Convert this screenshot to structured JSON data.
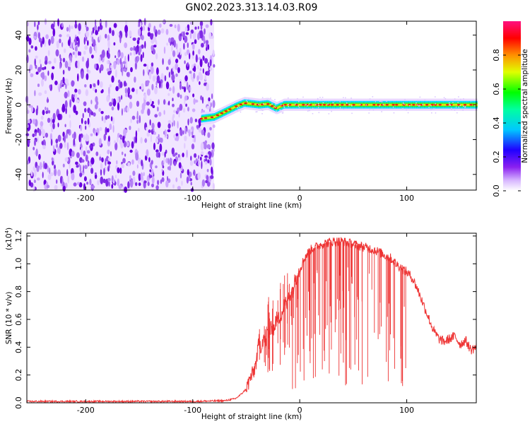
{
  "figure": {
    "title": "GN02.2023.313.14.03.R09"
  },
  "chart_data": [
    {
      "type": "heatmap",
      "name": "spectrogram",
      "xlabel": "Height of straight line (km)",
      "ylabel": "Frequency (Hz)",
      "xlim": [
        -255,
        165
      ],
      "ylim": [
        -49,
        48
      ],
      "xticks": [
        -200,
        -100,
        0,
        100
      ],
      "xtick_labels": [
        "-200",
        "-100",
        "0",
        "100"
      ],
      "yticks": [
        -40,
        -20,
        0,
        20,
        40
      ],
      "ytick_labels": [
        "-40",
        "-20",
        "0",
        "20",
        "40"
      ],
      "noise_region_x": [
        -255,
        -80
      ],
      "signal_track": {
        "description_points_x": [
          -92,
          -80,
          -70,
          -60,
          -52,
          -45,
          -38,
          -30,
          -22,
          -15,
          0,
          50,
          100,
          165
        ],
        "description_points_y": [
          -8,
          -7,
          -4,
          -1,
          1,
          0.5,
          0,
          0.5,
          -2,
          0,
          0,
          0,
          0,
          0
        ]
      },
      "colorbar": {
        "label": "Normalized spectral amplitude",
        "range": [
          0,
          1
        ],
        "ticks": [
          0.0,
          0.2,
          0.4,
          0.6,
          0.8
        ],
        "tick_labels": [
          "0.0",
          "0.2",
          "0.4",
          "0.6",
          "0.8"
        ],
        "colors": [
          "#ffffff",
          "#b070f0",
          "#6a00e0",
          "#0000ff",
          "#00d8ff",
          "#00ff00",
          "#ffff00",
          "#ff8000",
          "#ff0000",
          "#ff0080"
        ]
      },
      "grid": false
    },
    {
      "type": "line",
      "name": "snr",
      "xlabel": "Height of straight line (km)",
      "ylabel": "SNR (10 * v/v)",
      "yscale_label": "(x10",
      "yscale_exponent": "4",
      "yscale_close": ")",
      "xlim": [
        -255,
        165
      ],
      "ylim": [
        0,
        1.22
      ],
      "xticks": [
        -200,
        -100,
        0,
        100
      ],
      "xtick_labels": [
        "-200",
        "-100",
        "0",
        "100"
      ],
      "yticks": [
        0.0,
        0.2,
        0.4,
        0.6,
        0.8,
        1.0,
        1.2
      ],
      "ytick_labels": [
        "0.0",
        "0.2",
        "0.4",
        "0.6",
        "0.8",
        "1.0",
        "1.2"
      ],
      "color": "#ee3333",
      "series": [
        {
          "x": [
            -255,
            -200,
            -150,
            -100,
            -70,
            -60,
            -55,
            -50,
            -46,
            -43,
            -40,
            -38,
            -36,
            -34,
            -32,
            -30,
            -28,
            -26,
            -24,
            -22,
            -20,
            -18,
            -16,
            -14,
            -12,
            -10,
            -8,
            -6,
            -4,
            -2,
            0,
            5,
            10,
            15,
            20,
            25,
            30,
            35,
            40,
            45,
            50,
            55,
            60,
            65,
            70,
            75,
            80,
            85,
            90,
            95,
            100,
            105,
            110,
            115,
            120,
            125,
            130,
            135,
            140,
            145,
            150,
            155,
            160,
            165
          ],
          "y": [
            0.01,
            0.01,
            0.01,
            0.01,
            0.015,
            0.03,
            0.06,
            0.1,
            0.18,
            0.22,
            0.32,
            0.45,
            0.4,
            0.48,
            0.42,
            0.52,
            0.5,
            0.55,
            0.53,
            0.6,
            0.6,
            0.63,
            0.66,
            0.72,
            0.7,
            0.78,
            0.8,
            0.82,
            0.9,
            0.92,
            0.96,
            1.05,
            1.1,
            1.12,
            1.14,
            1.15,
            1.16,
            1.16,
            1.16,
            1.15,
            1.14,
            1.13,
            1.12,
            1.11,
            1.1,
            1.08,
            1.06,
            1.04,
            1.0,
            0.97,
            0.94,
            0.9,
            0.82,
            0.72,
            0.62,
            0.52,
            0.46,
            0.44,
            0.46,
            0.48,
            0.42,
            0.45,
            0.38,
            0.4
          ]
        }
      ],
      "grid": false
    }
  ]
}
